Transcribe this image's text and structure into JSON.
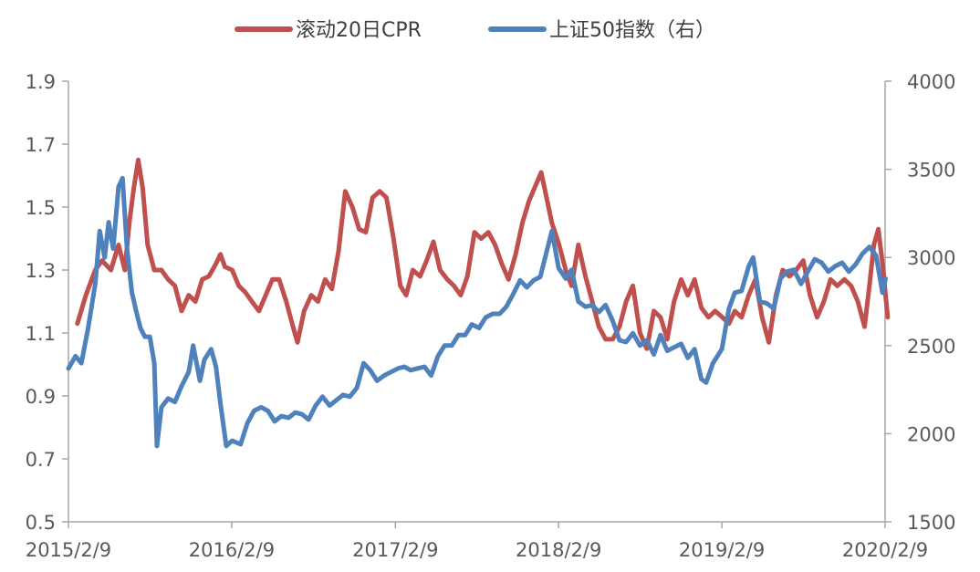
{
  "chart_data": {
    "type": "line",
    "title": "",
    "xlabel": "",
    "ylabel": "",
    "x_ticks": [
      "2015/2/9",
      "2016/2/9",
      "2017/2/9",
      "2018/2/9",
      "2019/2/9",
      "2020/2/9"
    ],
    "y_left": {
      "range": [
        0.5,
        1.9
      ],
      "ticks": [
        "0.5",
        "0.7",
        "0.9",
        "1.1",
        "1.3",
        "1.5",
        "1.7",
        "1.9"
      ]
    },
    "y_right": {
      "range": [
        1500,
        4000
      ],
      "ticks": [
        "1500",
        "2000",
        "2500",
        "3000",
        "3500",
        "4000"
      ]
    },
    "grid": false,
    "legend_position": "top",
    "series": [
      {
        "name": "滚动20日CPR",
        "axis": "left",
        "color": "#C0504D",
        "points": [
          [
            "2015-03-01",
            1.13
          ],
          [
            "2015-03-20",
            1.22
          ],
          [
            "2015-04-10",
            1.3
          ],
          [
            "2015-04-25",
            1.33
          ],
          [
            "2015-05-15",
            1.3
          ],
          [
            "2015-06-01",
            1.38
          ],
          [
            "2015-06-15",
            1.3
          ],
          [
            "2015-06-25",
            1.45
          ],
          [
            "2015-07-05",
            1.56
          ],
          [
            "2015-07-15",
            1.65
          ],
          [
            "2015-07-25",
            1.56
          ],
          [
            "2015-08-05",
            1.38
          ],
          [
            "2015-08-20",
            1.3
          ],
          [
            "2015-09-05",
            1.3
          ],
          [
            "2015-09-20",
            1.27
          ],
          [
            "2015-10-05",
            1.25
          ],
          [
            "2015-10-20",
            1.17
          ],
          [
            "2015-11-05",
            1.22
          ],
          [
            "2015-11-20",
            1.2
          ],
          [
            "2015-12-05",
            1.27
          ],
          [
            "2015-12-20",
            1.28
          ],
          [
            "2016-01-05",
            1.32
          ],
          [
            "2016-01-15",
            1.35
          ],
          [
            "2016-01-25",
            1.31
          ],
          [
            "2016-02-10",
            1.3
          ],
          [
            "2016-02-25",
            1.25
          ],
          [
            "2016-03-10",
            1.23
          ],
          [
            "2016-03-25",
            1.2
          ],
          [
            "2016-04-10",
            1.17
          ],
          [
            "2016-04-25",
            1.22
          ],
          [
            "2016-05-10",
            1.27
          ],
          [
            "2016-05-25",
            1.27
          ],
          [
            "2016-06-10",
            1.2
          ],
          [
            "2016-06-25",
            1.12
          ],
          [
            "2016-07-05",
            1.07
          ],
          [
            "2016-07-20",
            1.17
          ],
          [
            "2016-08-05",
            1.22
          ],
          [
            "2016-08-20",
            1.2
          ],
          [
            "2016-09-05",
            1.27
          ],
          [
            "2016-09-20",
            1.24
          ],
          [
            "2016-10-05",
            1.36
          ],
          [
            "2016-10-20",
            1.55
          ],
          [
            "2016-11-05",
            1.5
          ],
          [
            "2016-11-20",
            1.43
          ],
          [
            "2016-12-05",
            1.42
          ],
          [
            "2016-12-20",
            1.53
          ],
          [
            "2017-01-05",
            1.55
          ],
          [
            "2017-01-20",
            1.53
          ],
          [
            "2017-02-05",
            1.4
          ],
          [
            "2017-02-20",
            1.25
          ],
          [
            "2017-03-05",
            1.22
          ],
          [
            "2017-03-20",
            1.3
          ],
          [
            "2017-04-05",
            1.28
          ],
          [
            "2017-04-20",
            1.33
          ],
          [
            "2017-05-05",
            1.39
          ],
          [
            "2017-05-20",
            1.3
          ],
          [
            "2017-06-05",
            1.27
          ],
          [
            "2017-06-20",
            1.25
          ],
          [
            "2017-07-05",
            1.22
          ],
          [
            "2017-07-20",
            1.28
          ],
          [
            "2017-08-05",
            1.42
          ],
          [
            "2017-08-20",
            1.4
          ],
          [
            "2017-09-05",
            1.42
          ],
          [
            "2017-09-20",
            1.38
          ],
          [
            "2017-10-05",
            1.32
          ],
          [
            "2017-10-20",
            1.27
          ],
          [
            "2017-11-05",
            1.35
          ],
          [
            "2017-11-20",
            1.45
          ],
          [
            "2017-12-05",
            1.52
          ],
          [
            "2017-12-20",
            1.57
          ],
          [
            "2018-01-01",
            1.61
          ],
          [
            "2018-01-10",
            1.55
          ],
          [
            "2018-01-25",
            1.45
          ],
          [
            "2018-02-10",
            1.38
          ],
          [
            "2018-02-25",
            1.3
          ],
          [
            "2018-03-10",
            1.25
          ],
          [
            "2018-03-25",
            1.38
          ],
          [
            "2018-04-10",
            1.28
          ],
          [
            "2018-04-25",
            1.2
          ],
          [
            "2018-05-10",
            1.12
          ],
          [
            "2018-05-25",
            1.08
          ],
          [
            "2018-06-10",
            1.08
          ],
          [
            "2018-06-25",
            1.12
          ],
          [
            "2018-07-10",
            1.2
          ],
          [
            "2018-07-25",
            1.25
          ],
          [
            "2018-08-10",
            1.1
          ],
          [
            "2018-08-25",
            1.05
          ],
          [
            "2018-09-10",
            1.17
          ],
          [
            "2018-09-25",
            1.15
          ],
          [
            "2018-10-10",
            1.08
          ],
          [
            "2018-10-25",
            1.2
          ],
          [
            "2018-11-10",
            1.27
          ],
          [
            "2018-11-25",
            1.22
          ],
          [
            "2018-12-10",
            1.27
          ],
          [
            "2018-12-25",
            1.18
          ],
          [
            "2019-01-10",
            1.15
          ],
          [
            "2019-01-25",
            1.17
          ],
          [
            "2019-02-10",
            1.15
          ],
          [
            "2019-02-25",
            1.13
          ],
          [
            "2019-03-10",
            1.17
          ],
          [
            "2019-03-25",
            1.15
          ],
          [
            "2019-04-10",
            1.22
          ],
          [
            "2019-04-25",
            1.27
          ],
          [
            "2019-05-10",
            1.15
          ],
          [
            "2019-05-25",
            1.07
          ],
          [
            "2019-06-10",
            1.22
          ],
          [
            "2019-06-25",
            1.3
          ],
          [
            "2019-07-10",
            1.28
          ],
          [
            "2019-07-25",
            1.3
          ],
          [
            "2019-08-10",
            1.33
          ],
          [
            "2019-08-25",
            1.22
          ],
          [
            "2019-09-10",
            1.15
          ],
          [
            "2019-09-25",
            1.2
          ],
          [
            "2019-10-10",
            1.27
          ],
          [
            "2019-10-25",
            1.25
          ],
          [
            "2019-11-10",
            1.27
          ],
          [
            "2019-11-25",
            1.25
          ],
          [
            "2019-12-10",
            1.2
          ],
          [
            "2019-12-25",
            1.12
          ],
          [
            "2020-01-05",
            1.25
          ],
          [
            "2020-01-15",
            1.38
          ],
          [
            "2020-01-25",
            1.43
          ],
          [
            "2020-02-05",
            1.3
          ],
          [
            "2020-02-10",
            1.22
          ],
          [
            "2020-02-15",
            1.15
          ]
        ]
      },
      {
        "name": "上证50指数（右）",
        "axis": "right",
        "color": "#4F81BD",
        "points": [
          [
            "2015-02-09",
            2370
          ],
          [
            "2015-02-25",
            2440
          ],
          [
            "2015-03-10",
            2400
          ],
          [
            "2015-03-25",
            2600
          ],
          [
            "2015-04-10",
            2850
          ],
          [
            "2015-04-20",
            3150
          ],
          [
            "2015-05-01",
            3000
          ],
          [
            "2015-05-10",
            3200
          ],
          [
            "2015-05-20",
            3050
          ],
          [
            "2015-06-01",
            3400
          ],
          [
            "2015-06-10",
            3450
          ],
          [
            "2015-06-20",
            3050
          ],
          [
            "2015-07-01",
            2800
          ],
          [
            "2015-07-10",
            2700
          ],
          [
            "2015-07-20",
            2600
          ],
          [
            "2015-07-30",
            2550
          ],
          [
            "2015-08-10",
            2550
          ],
          [
            "2015-08-20",
            2400
          ],
          [
            "2015-08-26",
            1930
          ],
          [
            "2015-09-05",
            2150
          ],
          [
            "2015-09-20",
            2200
          ],
          [
            "2015-10-05",
            2180
          ],
          [
            "2015-10-20",
            2270
          ],
          [
            "2015-11-05",
            2350
          ],
          [
            "2015-11-15",
            2500
          ],
          [
            "2015-11-30",
            2300
          ],
          [
            "2015-12-10",
            2420
          ],
          [
            "2015-12-25",
            2480
          ],
          [
            "2016-01-05",
            2380
          ],
          [
            "2016-01-15",
            2170
          ],
          [
            "2016-01-28",
            1930
          ],
          [
            "2016-02-10",
            1960
          ],
          [
            "2016-02-29",
            1940
          ],
          [
            "2016-03-15",
            2060
          ],
          [
            "2016-03-30",
            2130
          ],
          [
            "2016-04-15",
            2150
          ],
          [
            "2016-04-30",
            2130
          ],
          [
            "2016-05-15",
            2070
          ],
          [
            "2016-05-30",
            2100
          ],
          [
            "2016-06-15",
            2090
          ],
          [
            "2016-06-30",
            2120
          ],
          [
            "2016-07-15",
            2110
          ],
          [
            "2016-07-30",
            2080
          ],
          [
            "2016-08-15",
            2160
          ],
          [
            "2016-08-30",
            2210
          ],
          [
            "2016-09-15",
            2160
          ],
          [
            "2016-09-30",
            2190
          ],
          [
            "2016-10-15",
            2220
          ],
          [
            "2016-10-30",
            2210
          ],
          [
            "2016-11-15",
            2260
          ],
          [
            "2016-11-30",
            2400
          ],
          [
            "2016-12-15",
            2360
          ],
          [
            "2016-12-30",
            2300
          ],
          [
            "2017-01-15",
            2330
          ],
          [
            "2017-01-30",
            2350
          ],
          [
            "2017-02-15",
            2370
          ],
          [
            "2017-03-01",
            2380
          ],
          [
            "2017-03-15",
            2360
          ],
          [
            "2017-03-30",
            2370
          ],
          [
            "2017-04-15",
            2380
          ],
          [
            "2017-04-30",
            2330
          ],
          [
            "2017-05-15",
            2440
          ],
          [
            "2017-05-30",
            2500
          ],
          [
            "2017-06-15",
            2500
          ],
          [
            "2017-06-30",
            2560
          ],
          [
            "2017-07-15",
            2560
          ],
          [
            "2017-07-30",
            2620
          ],
          [
            "2017-08-15",
            2600
          ],
          [
            "2017-08-30",
            2660
          ],
          [
            "2017-09-15",
            2680
          ],
          [
            "2017-09-30",
            2680
          ],
          [
            "2017-10-15",
            2720
          ],
          [
            "2017-10-30",
            2790
          ],
          [
            "2017-11-15",
            2870
          ],
          [
            "2017-11-30",
            2830
          ],
          [
            "2017-12-15",
            2870
          ],
          [
            "2017-12-30",
            2890
          ],
          [
            "2018-01-15",
            3050
          ],
          [
            "2018-01-25",
            3150
          ],
          [
            "2018-02-09",
            2940
          ],
          [
            "2018-02-25",
            2880
          ],
          [
            "2018-03-10",
            2930
          ],
          [
            "2018-03-25",
            2750
          ],
          [
            "2018-04-10",
            2720
          ],
          [
            "2018-04-25",
            2730
          ],
          [
            "2018-05-10",
            2690
          ],
          [
            "2018-05-25",
            2730
          ],
          [
            "2018-06-10",
            2640
          ],
          [
            "2018-06-25",
            2530
          ],
          [
            "2018-07-10",
            2520
          ],
          [
            "2018-07-25",
            2570
          ],
          [
            "2018-08-10",
            2500
          ],
          [
            "2018-08-25",
            2530
          ],
          [
            "2018-09-10",
            2450
          ],
          [
            "2018-09-25",
            2560
          ],
          [
            "2018-10-10",
            2470
          ],
          [
            "2018-10-25",
            2490
          ],
          [
            "2018-11-10",
            2510
          ],
          [
            "2018-11-25",
            2430
          ],
          [
            "2018-12-10",
            2480
          ],
          [
            "2018-12-25",
            2310
          ],
          [
            "2019-01-05",
            2290
          ],
          [
            "2019-01-20",
            2400
          ],
          [
            "2019-02-09",
            2480
          ],
          [
            "2019-02-25",
            2710
          ],
          [
            "2019-03-10",
            2800
          ],
          [
            "2019-03-25",
            2810
          ],
          [
            "2019-04-10",
            2950
          ],
          [
            "2019-04-20",
            3000
          ],
          [
            "2019-05-05",
            2750
          ],
          [
            "2019-05-20",
            2740
          ],
          [
            "2019-06-05",
            2710
          ],
          [
            "2019-06-20",
            2880
          ],
          [
            "2019-07-05",
            2920
          ],
          [
            "2019-07-20",
            2930
          ],
          [
            "2019-08-05",
            2850
          ],
          [
            "2019-08-20",
            2920
          ],
          [
            "2019-09-05",
            2990
          ],
          [
            "2019-09-20",
            2970
          ],
          [
            "2019-10-05",
            2920
          ],
          [
            "2019-10-20",
            2950
          ],
          [
            "2019-11-05",
            2970
          ],
          [
            "2019-11-20",
            2920
          ],
          [
            "2019-12-05",
            2960
          ],
          [
            "2019-12-20",
            3020
          ],
          [
            "2020-01-05",
            3060
          ],
          [
            "2020-01-20",
            3010
          ],
          [
            "2020-02-03",
            2800
          ],
          [
            "2020-02-10",
            2880
          ]
        ]
      }
    ]
  }
}
